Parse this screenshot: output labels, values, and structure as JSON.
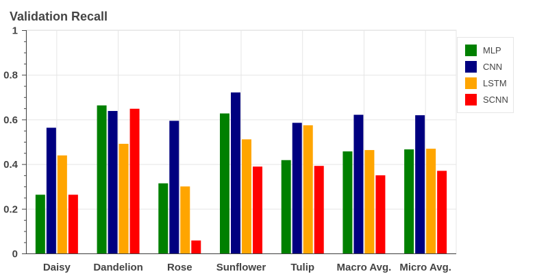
{
  "chart_data": {
    "type": "bar",
    "title": "Validation Recall",
    "xlabel": "",
    "ylabel": "",
    "categories": [
      "Daisy",
      "Dandelion",
      "Rose",
      "Sunflower",
      "Tulip",
      "Macro Avg.",
      "Micro Avg."
    ],
    "ylim": [
      0,
      1
    ],
    "yticks": [
      {
        "value": 0,
        "label": "0"
      },
      {
        "value": 0.2,
        "label": "0.2"
      },
      {
        "value": 0.4,
        "label": "0.4"
      },
      {
        "value": 0.6,
        "label": "0.6"
      },
      {
        "value": 0.8,
        "label": "0.8"
      },
      {
        "value": 1,
        "label": "1"
      }
    ],
    "grid": true,
    "legend_position": "right",
    "series": [
      {
        "name": "MLP",
        "color": "#008000",
        "values": [
          0.263,
          0.663,
          0.314,
          0.627,
          0.418,
          0.457,
          0.466
        ]
      },
      {
        "name": "CNN",
        "color": "#000080",
        "values": [
          0.563,
          0.638,
          0.594,
          0.721,
          0.585,
          0.621,
          0.619
        ]
      },
      {
        "name": "LSTM",
        "color": "#FFA500",
        "values": [
          0.439,
          0.491,
          0.3,
          0.511,
          0.574,
          0.463,
          0.469
        ]
      },
      {
        "name": "SCNN",
        "color": "#FF0000",
        "values": [
          0.263,
          0.648,
          0.058,
          0.389,
          0.392,
          0.35,
          0.37
        ]
      }
    ]
  }
}
